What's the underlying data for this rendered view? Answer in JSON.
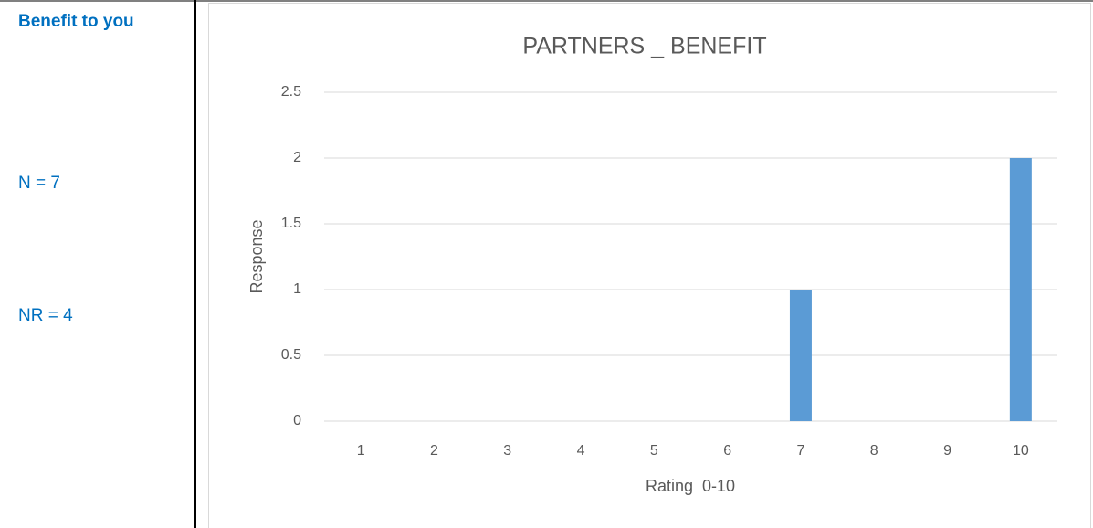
{
  "sidebar": {
    "heading": "Benefit to you",
    "n": "N = 7",
    "nr": "NR = 4"
  },
  "chart_data": {
    "type": "bar",
    "title": "PARTNERS _ BENEFIT",
    "x_label": "Rating  0-10",
    "y_label": "Response",
    "categories": [
      "1",
      "2",
      "3",
      "4",
      "5",
      "6",
      "7",
      "8",
      "9",
      "10"
    ],
    "values": [
      0,
      0,
      0,
      0,
      0,
      0,
      1,
      0,
      0,
      2
    ],
    "color": "#5b9bd5",
    "ylim": [
      0,
      2.5
    ],
    "yticks": [
      0,
      0.5,
      1,
      1.5,
      2,
      2.5
    ],
    "grid": true
  }
}
